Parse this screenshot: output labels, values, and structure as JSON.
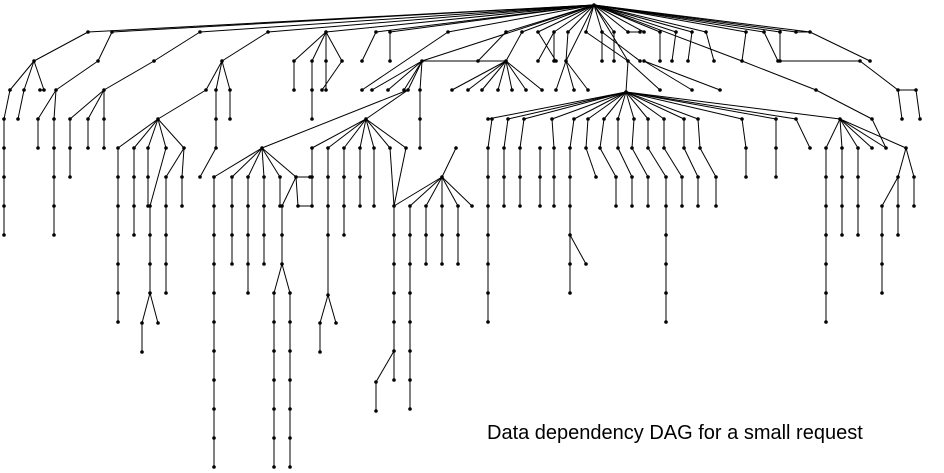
{
  "caption": "Data dependency DAG for a small request",
  "colors": {
    "background": "#ffffff",
    "edge": "#000000",
    "node": "#000000"
  }
}
